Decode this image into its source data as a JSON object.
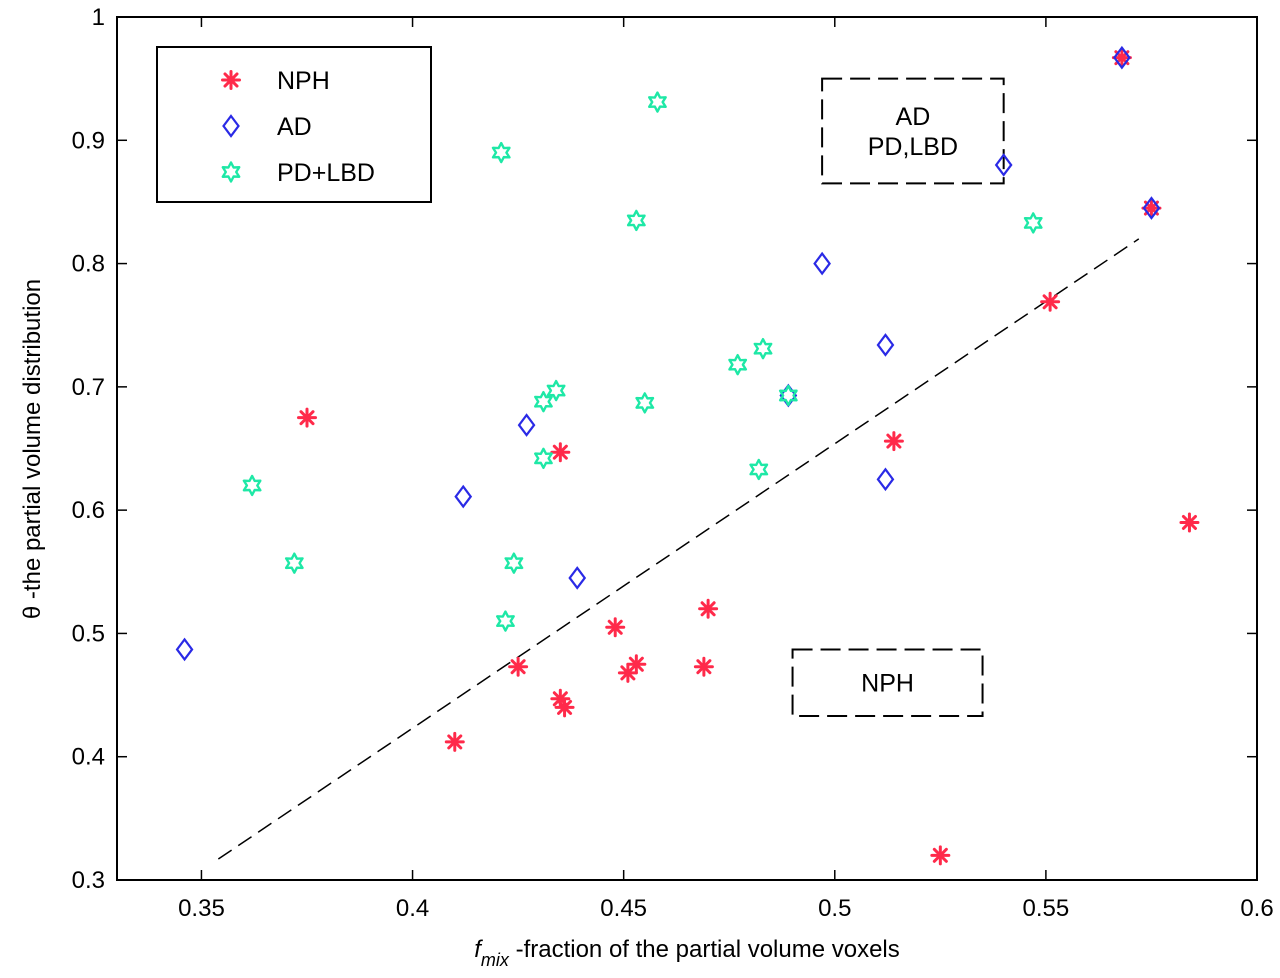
{
  "chart_data": {
    "type": "scatter",
    "xlabel_main": "f",
    "xlabel_sub": "mix",
    "xlabel_rest": " -fraction of the partial volume voxels",
    "ylabel": "θ -the partial volume distribution",
    "xlim": [
      0.33,
      0.6
    ],
    "ylim": [
      0.3,
      1.0
    ],
    "xticks": [
      0.35,
      0.4,
      0.45,
      0.5,
      0.55,
      0.6
    ],
    "xtick_labels": [
      "0.35",
      "0.4",
      "0.45",
      "0.5",
      "0.55",
      "0.6"
    ],
    "yticks": [
      0.3,
      0.4,
      0.5,
      0.6,
      0.7,
      0.8,
      0.9,
      1.0
    ],
    "ytick_labels": [
      "0.3",
      "0.4",
      "0.5",
      "0.6",
      "0.7",
      "0.8",
      "0.9",
      "1"
    ],
    "grid": false,
    "legend_position": "top-left",
    "series": [
      {
        "name": "NPH",
        "marker": "asterisk",
        "color": "#ff2a4a",
        "points": [
          [
            0.375,
            0.675
          ],
          [
            0.41,
            0.412
          ],
          [
            0.425,
            0.473
          ],
          [
            0.435,
            0.647
          ],
          [
            0.435,
            0.447
          ],
          [
            0.436,
            0.44
          ],
          [
            0.448,
            0.505
          ],
          [
            0.451,
            0.468
          ],
          [
            0.453,
            0.475
          ],
          [
            0.469,
            0.473
          ],
          [
            0.47,
            0.52
          ],
          [
            0.514,
            0.656
          ],
          [
            0.525,
            0.32
          ],
          [
            0.551,
            0.769
          ],
          [
            0.568,
            0.967
          ],
          [
            0.575,
            0.845
          ],
          [
            0.584,
            0.59
          ]
        ]
      },
      {
        "name": "AD",
        "marker": "diamond",
        "color": "#2a2ae6",
        "points": [
          [
            0.346,
            0.487
          ],
          [
            0.412,
            0.611
          ],
          [
            0.427,
            0.669
          ],
          [
            0.439,
            0.545
          ],
          [
            0.489,
            0.693
          ],
          [
            0.497,
            0.8
          ],
          [
            0.512,
            0.734
          ],
          [
            0.512,
            0.625
          ],
          [
            0.54,
            0.88
          ],
          [
            0.568,
            0.967
          ],
          [
            0.575,
            0.845
          ]
        ]
      },
      {
        "name": "PD+LBD",
        "marker": "hexagram",
        "color": "#1ee8a6",
        "points": [
          [
            0.362,
            0.62
          ],
          [
            0.372,
            0.557
          ],
          [
            0.421,
            0.89
          ],
          [
            0.422,
            0.51
          ],
          [
            0.424,
            0.557
          ],
          [
            0.431,
            0.688
          ],
          [
            0.431,
            0.642
          ],
          [
            0.434,
            0.697
          ],
          [
            0.453,
            0.835
          ],
          [
            0.455,
            0.687
          ],
          [
            0.458,
            0.931
          ],
          [
            0.477,
            0.718
          ],
          [
            0.482,
            0.633
          ],
          [
            0.483,
            0.731
          ],
          [
            0.489,
            0.693
          ],
          [
            0.547,
            0.833
          ]
        ]
      }
    ],
    "trend_line": {
      "from": [
        0.354,
        0.317
      ],
      "to": [
        0.572,
        0.82
      ],
      "style": "dashed"
    },
    "annotations": [
      {
        "lines": [
          "AD",
          "PD,LBD"
        ],
        "x_range": [
          0.497,
          0.54
        ],
        "y_range": [
          0.865,
          0.95
        ]
      },
      {
        "lines": [
          "NPH"
        ],
        "x_range": [
          0.49,
          0.535
        ],
        "y_range": [
          0.433,
          0.487
        ]
      }
    ]
  }
}
